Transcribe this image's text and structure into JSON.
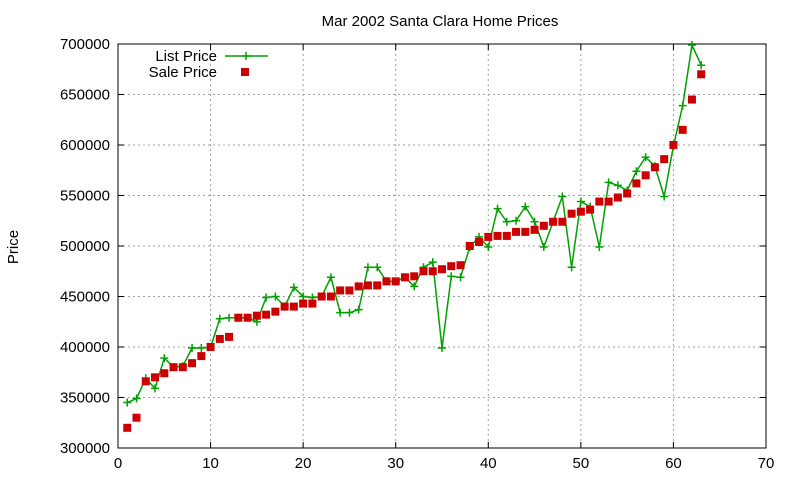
{
  "chart_data": {
    "type": "line",
    "title": "Mar 2002 Santa Clara Home Prices",
    "xlabel": "",
    "ylabel": "Price",
    "xlim": [
      0,
      70
    ],
    "ylim": [
      300000,
      700000
    ],
    "x_ticks": [
      0,
      10,
      20,
      30,
      40,
      50,
      60,
      70
    ],
    "y_ticks": [
      300000,
      350000,
      400000,
      450000,
      500000,
      550000,
      600000,
      650000,
      700000
    ],
    "grid": true,
    "legend_position": "top-left",
    "x": [
      1,
      2,
      3,
      4,
      5,
      6,
      7,
      8,
      9,
      10,
      11,
      12,
      13,
      14,
      15,
      16,
      17,
      18,
      19,
      20,
      21,
      22,
      23,
      24,
      25,
      26,
      27,
      28,
      29,
      30,
      31,
      32,
      33,
      34,
      35,
      36,
      37,
      38,
      39,
      40,
      41,
      42,
      43,
      44,
      45,
      46,
      47,
      48,
      49,
      50,
      51,
      52,
      53,
      54,
      55,
      56,
      57,
      58,
      59,
      60,
      61,
      62,
      63
    ],
    "series": [
      {
        "name": "List Price",
        "style": "line-plus",
        "color": "#00a000",
        "values": [
          345000,
          349000,
          369000,
          359000,
          389000,
          380000,
          381000,
          399000,
          399000,
          400000,
          428000,
          429000,
          429000,
          429000,
          425000,
          449000,
          450000,
          440000,
          459000,
          450000,
          449000,
          450000,
          469000,
          434000,
          434000,
          437000,
          479000,
          479000,
          465000,
          465000,
          469000,
          460000,
          479000,
          484000,
          399000,
          470000,
          469000,
          499000,
          509000,
          499000,
          537000,
          524000,
          525000,
          539000,
          524000,
          499000,
          524000,
          549000,
          479000,
          544000,
          539000,
          499000,
          563000,
          560000,
          555000,
          574000,
          588000,
          579000,
          549000,
          599000,
          639000,
          699000,
          679000
        ]
      },
      {
        "name": "Sale Price",
        "style": "square-marker",
        "color": "#cc0000",
        "values": [
          320000,
          330000,
          366000,
          370000,
          374000,
          380000,
          380000,
          384000,
          391000,
          400000,
          408000,
          410000,
          429000,
          429000,
          431000,
          432000,
          435000,
          440000,
          440000,
          443000,
          443000,
          450000,
          450000,
          456000,
          456000,
          460000,
          461000,
          461000,
          465000,
          465000,
          469000,
          470000,
          475000,
          475000,
          477000,
          480000,
          481000,
          500000,
          504000,
          509000,
          510000,
          510000,
          514000,
          514000,
          516000,
          520000,
          524000,
          524000,
          532000,
          534000,
          536000,
          544000,
          544000,
          548000,
          552000,
          562000,
          570000,
          578000,
          586000,
          600000,
          615000,
          645000,
          670000
        ]
      }
    ]
  }
}
